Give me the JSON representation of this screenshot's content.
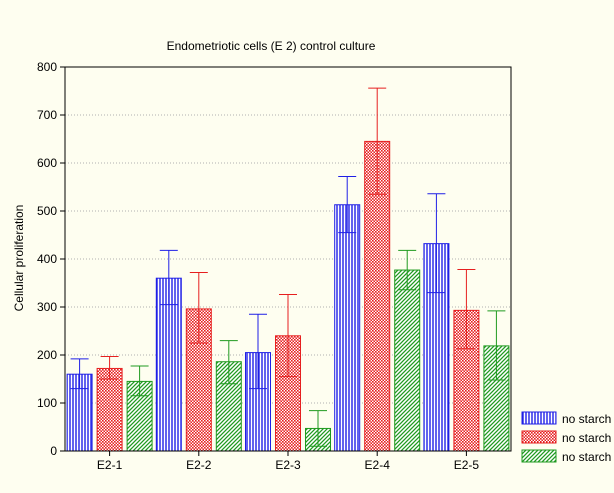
{
  "chart_data": {
    "type": "bar",
    "title": "Endometriotic cells (E 2) control culture",
    "xlabel": "",
    "ylabel": "Cellular proliferation",
    "categories": [
      "E2-1",
      "E2-2",
      "E2-3",
      "E2-4",
      "E2-5"
    ],
    "ylim": [
      0,
      800
    ],
    "yticks": [
      0,
      100,
      200,
      300,
      400,
      500,
      600,
      700,
      800
    ],
    "grid": true,
    "legend_position": "bottom-right",
    "series": [
      {
        "name": "no starch",
        "color": "#1f1fe6",
        "pattern": "vertical-lines",
        "values": [
          160,
          360,
          205,
          513,
          432
        ],
        "error_high": [
          192,
          418,
          285,
          572,
          536
        ],
        "error_low": [
          130,
          305,
          130,
          455,
          330
        ]
      },
      {
        "name": "no starch",
        "color": "#e61f1f",
        "pattern": "cross-hatch",
        "values": [
          172,
          296,
          240,
          645,
          293
        ],
        "error_high": [
          197,
          372,
          326,
          756,
          378
        ],
        "error_low": [
          150,
          225,
          155,
          535,
          213
        ]
      },
      {
        "name": "no starch",
        "color": "#1f9a1f",
        "pattern": "diagonal-lines",
        "values": [
          145,
          186,
          47,
          377,
          219
        ],
        "error_high": [
          177,
          230,
          84,
          418,
          292
        ],
        "error_low": [
          115,
          140,
          10,
          336,
          148
        ]
      }
    ]
  }
}
